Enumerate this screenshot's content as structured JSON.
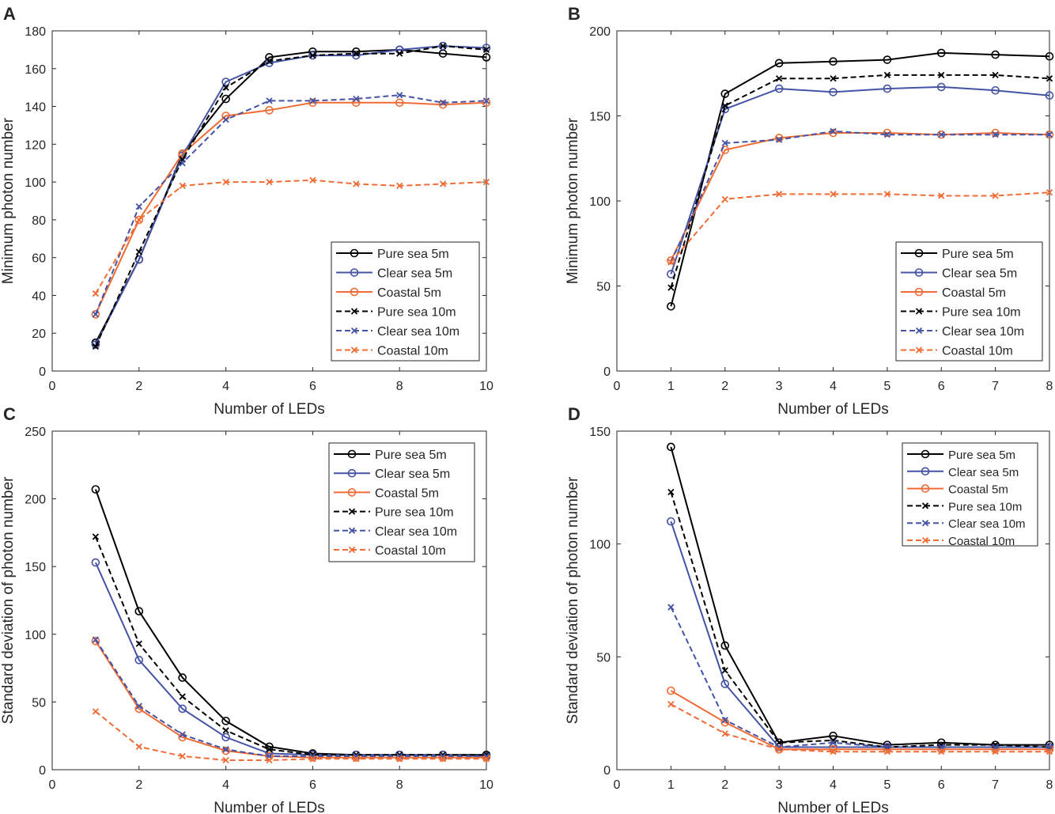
{
  "chart_data": [
    {
      "panel": "A",
      "type": "line",
      "xlabel": "Number of LEDs",
      "ylabel": "Minimum photon number",
      "xlim": [
        0,
        10
      ],
      "ylim": [
        0,
        180
      ],
      "xticks": [
        0,
        2,
        4,
        6,
        8,
        10
      ],
      "yticks": [
        0,
        20,
        40,
        60,
        80,
        100,
        120,
        140,
        160,
        180
      ],
      "legend_position": "lower-right",
      "x": [
        1,
        2,
        3,
        4,
        5,
        6,
        7,
        8,
        9,
        10
      ],
      "series": [
        {
          "name": "Pure sea 5m",
          "color": "#000000",
          "dash": "solid",
          "marker": "circle",
          "values": [
            15,
            59,
            115,
            144,
            166,
            169,
            169,
            170,
            168,
            166
          ]
        },
        {
          "name": "Clear sea 5m",
          "color": "#4453a4",
          "dash": "solid",
          "marker": "circle",
          "values": [
            14,
            59,
            114,
            153,
            163,
            167,
            167,
            170,
            172,
            171
          ]
        },
        {
          "name": "Coastal 5m",
          "color": "#ef6c36",
          "dash": "solid",
          "marker": "circle",
          "values": [
            30,
            80,
            115,
            135,
            138,
            142,
            142,
            142,
            141,
            142
          ]
        },
        {
          "name": "Pure sea 10m",
          "color": "#000000",
          "dash": "dashed",
          "marker": "x",
          "values": [
            13,
            63,
            112,
            150,
            164,
            167,
            168,
            168,
            172,
            170
          ]
        },
        {
          "name": "Clear sea 10m",
          "color": "#4453a4",
          "dash": "dashed",
          "marker": "x",
          "values": [
            30,
            87,
            110,
            133,
            143,
            143,
            144,
            146,
            142,
            143
          ]
        },
        {
          "name": "Coastal 10m",
          "color": "#ef6c36",
          "dash": "dashed",
          "marker": "x",
          "values": [
            41,
            80,
            98,
            100,
            100,
            101,
            99,
            98,
            99,
            100
          ]
        }
      ]
    },
    {
      "panel": "B",
      "type": "line",
      "xlabel": "Number of LEDs",
      "ylabel": "Minimum photon number",
      "xlim": [
        0,
        8
      ],
      "ylim": [
        0,
        200
      ],
      "xticks": [
        0,
        1,
        2,
        3,
        4,
        5,
        6,
        7,
        8
      ],
      "yticks": [
        0,
        50,
        100,
        150,
        200
      ],
      "legend_position": "lower-right",
      "x": [
        1,
        2,
        3,
        4,
        5,
        6,
        7,
        8
      ],
      "series": [
        {
          "name": "Pure sea 5m",
          "color": "#000000",
          "dash": "solid",
          "marker": "circle",
          "values": [
            38,
            163,
            181,
            182,
            183,
            187,
            186,
            185
          ]
        },
        {
          "name": "Clear sea 5m",
          "color": "#4453a4",
          "dash": "solid",
          "marker": "circle",
          "values": [
            57,
            154,
            166,
            164,
            166,
            167,
            165,
            162
          ]
        },
        {
          "name": "Coastal 5m",
          "color": "#ef6c36",
          "dash": "solid",
          "marker": "circle",
          "values": [
            65,
            130,
            137,
            140,
            140,
            139,
            140,
            139
          ]
        },
        {
          "name": "Pure sea 10m",
          "color": "#000000",
          "dash": "dashed",
          "marker": "x",
          "values": [
            49,
            156,
            172,
            172,
            174,
            174,
            174,
            172
          ]
        },
        {
          "name": "Clear sea 10m",
          "color": "#4453a4",
          "dash": "dashed",
          "marker": "x",
          "values": [
            64,
            134,
            136,
            141,
            139,
            139,
            139,
            139
          ]
        },
        {
          "name": "Coastal 10m",
          "color": "#ef6c36",
          "dash": "dashed",
          "marker": "x",
          "values": [
            64,
            101,
            104,
            104,
            104,
            103,
            103,
            105
          ]
        }
      ]
    },
    {
      "panel": "C",
      "type": "line",
      "xlabel": "Number of LEDs",
      "ylabel": "Standard deviation of photon number",
      "xlim": [
        0,
        10
      ],
      "ylim": [
        0,
        250
      ],
      "xticks": [
        0,
        2,
        4,
        6,
        8,
        10
      ],
      "yticks": [
        0,
        50,
        100,
        150,
        200,
        250
      ],
      "legend_position": "top-right",
      "x": [
        1,
        2,
        3,
        4,
        5,
        6,
        7,
        8,
        9,
        10
      ],
      "series": [
        {
          "name": "Pure sea 5m",
          "color": "#000000",
          "dash": "solid",
          "marker": "circle",
          "values": [
            207,
            117,
            68,
            36,
            17,
            12,
            11,
            11,
            11,
            11
          ]
        },
        {
          "name": "Clear sea 5m",
          "color": "#4453a4",
          "dash": "solid",
          "marker": "circle",
          "values": [
            153,
            81,
            45,
            24,
            12,
            11,
            11,
            11,
            11,
            10
          ]
        },
        {
          "name": "Coastal 5m",
          "color": "#ef6c36",
          "dash": "solid",
          "marker": "circle",
          "values": [
            95,
            45,
            24,
            14,
            10,
            9,
            9,
            9,
            9,
            9
          ]
        },
        {
          "name": "Pure sea 10m",
          "color": "#000000",
          "dash": "dashed",
          "marker": "x",
          "values": [
            172,
            93,
            54,
            29,
            15,
            11,
            11,
            11,
            11,
            11
          ]
        },
        {
          "name": "Clear sea 10m",
          "color": "#4453a4",
          "dash": "dashed",
          "marker": "x",
          "values": [
            96,
            47,
            26,
            15,
            10,
            10,
            10,
            10,
            10,
            10
          ]
        },
        {
          "name": "Coastal 10m",
          "color": "#ef6c36",
          "dash": "dashed",
          "marker": "x",
          "values": [
            43,
            17,
            10,
            7,
            7,
            8,
            8,
            8,
            8,
            8
          ]
        }
      ]
    },
    {
      "panel": "D",
      "type": "line",
      "xlabel": "Number of LEDs",
      "ylabel": "Standard deviation of photon number",
      "xlim": [
        0,
        8
      ],
      "ylim": [
        0,
        150
      ],
      "xticks": [
        0,
        1,
        2,
        3,
        4,
        5,
        6,
        7,
        8
      ],
      "yticks": [
        0,
        50,
        100,
        150
      ],
      "legend_position": "top-right",
      "x": [
        1,
        2,
        3,
        4,
        5,
        6,
        7,
        8
      ],
      "series": [
        {
          "name": "Pure sea 5m",
          "color": "#000000",
          "dash": "solid",
          "marker": "circle",
          "values": [
            143,
            55,
            12,
            15,
            11,
            12,
            11,
            11
          ]
        },
        {
          "name": "Clear sea 5m",
          "color": "#4453a4",
          "dash": "solid",
          "marker": "circle",
          "values": [
            110,
            38,
            10,
            10,
            10,
            10,
            10,
            10
          ]
        },
        {
          "name": "Coastal 5m",
          "color": "#ef6c36",
          "dash": "solid",
          "marker": "circle",
          "values": [
            35,
            21,
            9,
            9,
            9,
            9,
            9,
            9
          ]
        },
        {
          "name": "Pure sea 10m",
          "color": "#000000",
          "dash": "dashed",
          "marker": "x",
          "values": [
            123,
            44,
            12,
            13,
            10,
            11,
            11,
            10
          ]
        },
        {
          "name": "Clear sea 10m",
          "color": "#4453a4",
          "dash": "dashed",
          "marker": "x",
          "values": [
            72,
            22,
            10,
            12,
            10,
            10,
            10,
            10
          ]
        },
        {
          "name": "Coastal 10m",
          "color": "#ef6c36",
          "dash": "dashed",
          "marker": "x",
          "values": [
            29,
            16,
            9,
            8,
            8,
            8,
            8,
            8
          ]
        }
      ]
    }
  ]
}
